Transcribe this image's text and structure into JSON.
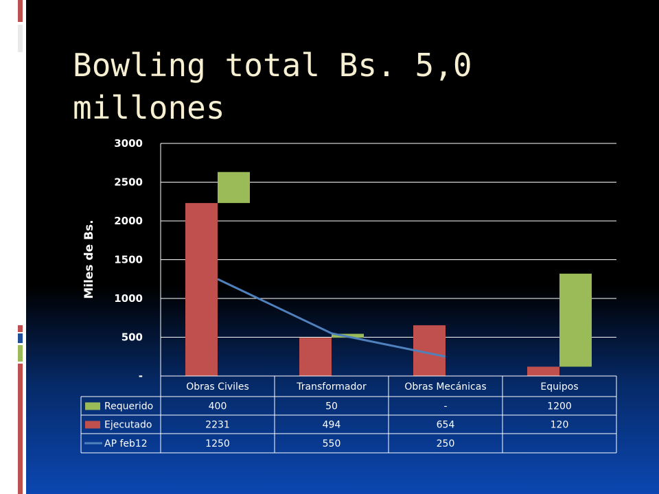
{
  "slide": {
    "title": "Bowling total Bs. 5,0 millones"
  },
  "colors": {
    "requerido": "#9bbb59",
    "ejecutado": "#c0504d",
    "ap": "#4f81bd",
    "title": "#f6efd1"
  },
  "chart_data": {
    "type": "bar",
    "stacked": true,
    "categories": [
      "Obras Civiles",
      "Transformador",
      "Obras Mecánicas",
      "Equipos"
    ],
    "ylabel": "Miles de Bs.",
    "ylim": [
      0,
      3000
    ],
    "yticks": [
      0,
      500,
      1000,
      1500,
      2000,
      2500,
      3000
    ],
    "ytick_labels": [
      "-",
      "500",
      "1000",
      "1500",
      "2000",
      "2500",
      "3000"
    ],
    "grid": true,
    "legend": "data-table",
    "series": [
      {
        "name": "Requerido",
        "type": "bar",
        "color": "#9bbb59",
        "values": [
          400,
          50,
          0,
          1200
        ],
        "labels": [
          "400",
          "50",
          "-",
          "1200"
        ]
      },
      {
        "name": "Ejecutado",
        "type": "bar",
        "color": "#c0504d",
        "values": [
          2231,
          494,
          654,
          120
        ],
        "labels": [
          "2231",
          "494",
          "654",
          "120"
        ]
      },
      {
        "name": "AP feb12",
        "type": "line",
        "color": "#4f81bd",
        "values": [
          1250,
          550,
          250,
          null
        ],
        "labels": [
          "1250",
          "550",
          "250",
          ""
        ]
      }
    ],
    "stack_order": [
      "Ejecutado",
      "Requerido"
    ]
  }
}
